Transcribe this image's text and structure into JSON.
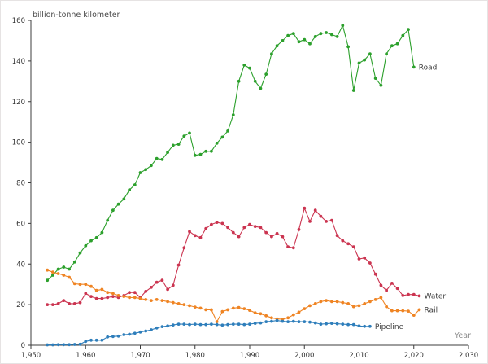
{
  "figure": {
    "title": "billion-tonne kilometer",
    "xaxis_title": "Year",
    "axis_color": "#3c3c3c",
    "tick_label_color": "#333333",
    "series_label_color": "#3d3d3d"
  },
  "chart_data": {
    "type": "line",
    "title": "billion-tonne kilometer",
    "xlabel": "Year",
    "ylabel": "billion-tonne kilometer",
    "xlim": [
      1950,
      2030
    ],
    "ylim": [
      0,
      160
    ],
    "x_tick_values": [
      1950,
      1960,
      1970,
      1980,
      1990,
      2000,
      2010,
      2020,
      2030
    ],
    "x_tick_labels": [
      "1,950",
      "1,960",
      "1,970",
      "1,980",
      "1,990",
      "2,000",
      "2,010",
      "2,020",
      "2,030"
    ],
    "y_tick_values": [
      0,
      20,
      40,
      60,
      80,
      100,
      120,
      140,
      160
    ],
    "y_tick_labels": [
      "0",
      "20",
      "40",
      "60",
      "80",
      "100",
      "120",
      "140",
      "160"
    ],
    "grid": false,
    "legend_position": "end-of-line labels",
    "marker": "dot",
    "series": [
      {
        "name": "Road",
        "color": "#2ca02c",
        "start_year": 1953,
        "end_year": 2020,
        "values": [
          32,
          34.5,
          37.5,
          38.5,
          37.5,
          41,
          45.5,
          49,
          51.5,
          53,
          55.5,
          61.5,
          66.5,
          69.5,
          72,
          76.5,
          79,
          85,
          86.5,
          88.5,
          92,
          91.5,
          95,
          98.5,
          99,
          103,
          104.5,
          93.5,
          94,
          95.5,
          95.5,
          99.5,
          102.5,
          105.5,
          113.5,
          130,
          138,
          136.5,
          130,
          126.5,
          133.5,
          143.5,
          147.5,
          150,
          152.5,
          153.5,
          149.5,
          150.5,
          148.5,
          152,
          153.5,
          154,
          153,
          152,
          157.5,
          147,
          125.5,
          139,
          140.5,
          143.5,
          131.5,
          128,
          143.5,
          147.5,
          148.5,
          152.5,
          155.5,
          137
        ]
      },
      {
        "name": "Water",
        "color": "#cb3450",
        "start_year": 1953,
        "end_year": 2021,
        "values": [
          20,
          20,
          20.5,
          22,
          20.5,
          20.5,
          21,
          25.5,
          24,
          23,
          23,
          23.5,
          24,
          23.5,
          24.5,
          26,
          26,
          23.5,
          26.5,
          28.5,
          31,
          32,
          27.5,
          29.5,
          39.5,
          48,
          56,
          54,
          53,
          57.5,
          59.5,
          60.5,
          60,
          58,
          55.5,
          53.5,
          58,
          59.5,
          58.5,
          58,
          55.5,
          53.5,
          55,
          53.5,
          48.5,
          48,
          57,
          67.5,
          61,
          66.5,
          63.5,
          61,
          61.5,
          54,
          51.5,
          50,
          48.5,
          42.5,
          43,
          40.5,
          35,
          29.5,
          27,
          30.5,
          28,
          24.5,
          25,
          25,
          24.3
        ]
      },
      {
        "name": "Rail",
        "color": "#ef8423",
        "start_year": 1953,
        "end_year": 2021,
        "values": [
          37,
          36,
          35.3,
          34.5,
          33.5,
          30.3,
          30,
          30,
          29,
          27,
          27.5,
          26,
          25.5,
          24.5,
          24,
          23.5,
          23.5,
          23,
          22.5,
          22,
          22.5,
          22,
          21.5,
          21,
          20.5,
          20,
          19.5,
          18.8,
          18.3,
          17.5,
          17.5,
          11.6,
          16.6,
          17.5,
          18.3,
          18.6,
          18,
          17.2,
          16,
          15.5,
          14.5,
          13.5,
          13,
          12.8,
          13.5,
          15,
          16.3,
          18,
          19.5,
          20.5,
          21.5,
          22,
          21.5,
          21.5,
          21,
          20.5,
          19,
          19.5,
          20.5,
          21.5,
          22.5,
          23.5,
          19,
          17,
          17,
          17,
          16.8,
          14.8,
          17.5
        ]
      },
      {
        "name": "Pipeline",
        "color": "#2e7ebb",
        "start_year": 1953,
        "end_year": 2012,
        "values": [
          0.2,
          0.2,
          0.3,
          0.3,
          0.3,
          0.4,
          0.5,
          1.9,
          2.5,
          2.5,
          2.5,
          4.1,
          4.3,
          4.5,
          5.2,
          5.4,
          5.9,
          6.5,
          7,
          7.6,
          8.5,
          9.2,
          9.5,
          10,
          10.4,
          10.4,
          10.2,
          10.4,
          10.2,
          10.2,
          10.4,
          10.2,
          9.9,
          10.2,
          10.4,
          10.4,
          10.2,
          10.4,
          10.8,
          11,
          11.6,
          11.8,
          12.2,
          11.8,
          11.6,
          11.8,
          11.6,
          11.6,
          11.4,
          11,
          10.4,
          10.6,
          10.8,
          10.6,
          10.4,
          10.2,
          10.2,
          9.5,
          9.3,
          9.3
        ]
      }
    ]
  }
}
